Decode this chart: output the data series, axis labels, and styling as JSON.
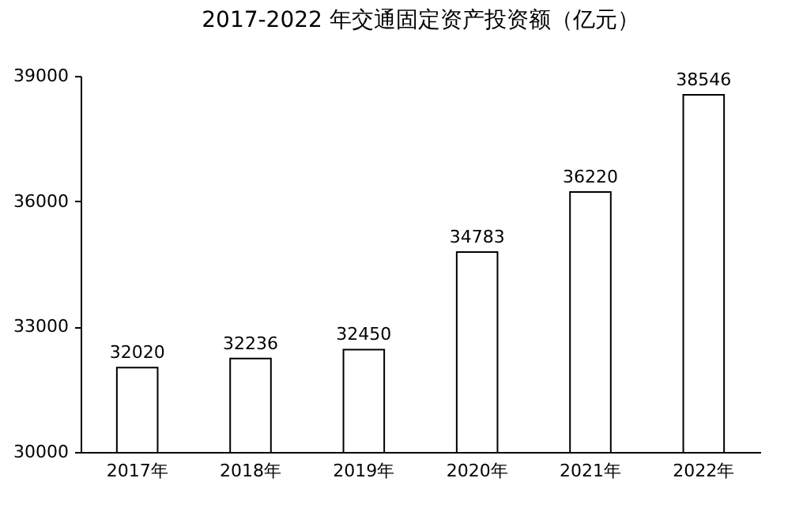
{
  "chart_data": {
    "type": "bar",
    "title": "2017-2022 年交通固定资产投资额（亿元）",
    "categories": [
      "2017年",
      "2018年",
      "2019年",
      "2020年",
      "2021年",
      "2022年"
    ],
    "values": [
      32020,
      32236,
      32450,
      34783,
      36220,
      38546
    ],
    "color": "#ffffff",
    "ylim": [
      30000,
      39000
    ],
    "yticks": [
      30000,
      33000,
      36000,
      39000
    ],
    "grid": false,
    "data_labels": true
  }
}
